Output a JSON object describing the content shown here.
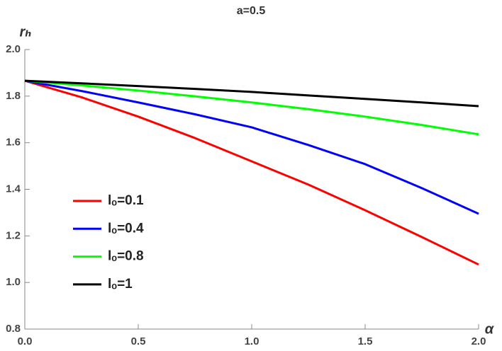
{
  "chart_data": {
    "type": "line",
    "title": "a=0.5",
    "xlabel": "α",
    "ylabel": "rₕ",
    "x": [
      0,
      0.25,
      0.5,
      0.75,
      1,
      1.25,
      1.5,
      1.75,
      2
    ],
    "series": [
      {
        "name": "lₒ=0.1",
        "color": "#ff0000",
        "values": [
          1.866,
          1.795,
          1.712,
          1.62,
          1.52,
          1.42,
          1.31,
          1.195,
          1.077
        ]
      },
      {
        "name": "lₒ=0.4",
        "color": "#0000ff",
        "values": [
          1.866,
          1.822,
          1.773,
          1.722,
          1.666,
          1.59,
          1.508,
          1.405,
          1.295
        ]
      },
      {
        "name": "lₒ=0.8",
        "color": "#00ff00",
        "values": [
          1.866,
          1.846,
          1.824,
          1.799,
          1.773,
          1.744,
          1.712,
          1.676,
          1.636
        ]
      },
      {
        "name": "lₒ=1",
        "color": "#000000",
        "values": [
          1.866,
          1.855,
          1.843,
          1.831,
          1.818,
          1.803,
          1.788,
          1.773,
          1.757
        ]
      }
    ],
    "xlim": [
      0,
      2
    ],
    "ylim": [
      0.8,
      2
    ],
    "xticks": [
      {
        "value": 0,
        "label": "0.0"
      },
      0.5,
      {
        "value": 1,
        "label": "1.0"
      },
      1.5,
      {
        "value": 2,
        "label": "2.0"
      }
    ],
    "yticks": [
      0.8,
      {
        "value": 1,
        "label": "1.0"
      },
      1.2,
      1.4,
      1.6,
      1.8,
      {
        "value": 2,
        "label": "2.0"
      }
    ],
    "grid": false,
    "legend": "left"
  }
}
